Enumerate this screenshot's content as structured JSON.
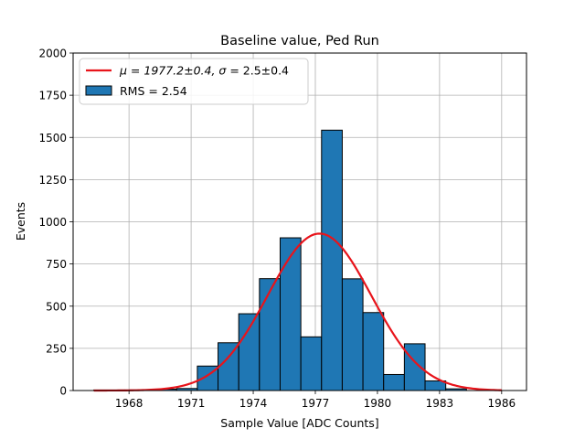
{
  "chart_data": {
    "type": "bar",
    "title": "Baseline value, Ped Run",
    "xlabel": "Sample Value [ADC Counts]",
    "ylabel": "Events",
    "xlim": [
      1965.3,
      1987.2
    ],
    "ylim": [
      0,
      2000
    ],
    "xticks": [
      1968,
      1971,
      1974,
      1977,
      1980,
      1983,
      1986
    ],
    "yticks": [
      0,
      250,
      500,
      750,
      1000,
      1250,
      1500,
      1750,
      2000
    ],
    "grid": true,
    "legend_position": "top-left",
    "histogram": {
      "name": "RMS = 2.54",
      "color": "#1f77b4",
      "edgecolor": "#000000",
      "bin_edges": [
        1966.3,
        1967.8,
        1969.3,
        1970.3,
        1971.3,
        1972.3,
        1973.3,
        1974.3,
        1975.3,
        1976.3,
        1977.3,
        1978.3,
        1979.3,
        1980.3,
        1981.3,
        1982.3,
        1983.3,
        1984.3
      ],
      "counts": [
        3,
        3,
        8,
        12,
        145,
        283,
        455,
        663,
        905,
        318,
        1543,
        662,
        462,
        95,
        277,
        57,
        10
      ]
    },
    "fit": {
      "name_prefix": "μ = 1977.2±0.4, ",
      "name_sigma": "σ",
      "name_suffix": " = 2.5±0.4",
      "color": "#e8141b",
      "mu": 1977.2,
      "sigma": 2.5,
      "amplitude": 930,
      "x_range": [
        1966.3,
        1986.0
      ]
    }
  }
}
